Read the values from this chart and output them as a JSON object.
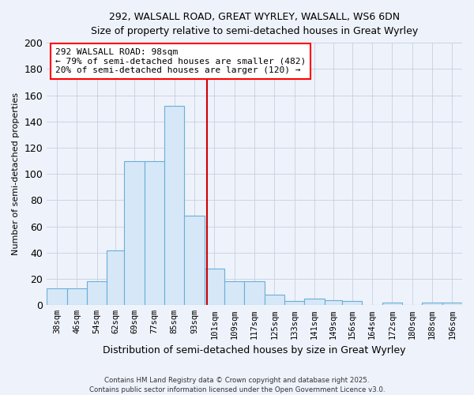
{
  "title": "292, WALSALL ROAD, GREAT WYRLEY, WALSALL, WS6 6DN",
  "subtitle": "Size of property relative to semi-detached houses in Great Wyrley",
  "xlabel": "Distribution of semi-detached houses by size in Great Wyrley",
  "ylabel": "Number of semi-detached properties",
  "annotation_title": "292 WALSALL ROAD: 98sqm",
  "annotation_line1": "← 79% of semi-detached houses are smaller (482)",
  "annotation_line2": "20% of semi-detached houses are larger (120) →",
  "property_value": 98,
  "bar_color": "#d6e8f7",
  "bar_edge_color": "#6aaed6",
  "vline_color": "#cc0000",
  "background_color": "#eef2fa",
  "grid_color": "#c8cfe0",
  "categories": [
    "38sqm",
    "46sqm",
    "54sqm",
    "62sqm",
    "69sqm",
    "77sqm",
    "85sqm",
    "93sqm",
    "101sqm",
    "109sqm",
    "117sqm",
    "125sqm",
    "133sqm",
    "141sqm",
    "149sqm",
    "156sqm",
    "164sqm",
    "172sqm",
    "180sqm",
    "188sqm",
    "196sqm"
  ],
  "bin_edges": [
    34,
    42,
    50,
    58,
    65,
    73,
    81,
    89,
    97,
    105,
    113,
    121,
    129,
    137,
    145,
    152,
    160,
    168,
    176,
    184,
    192,
    200
  ],
  "counts": [
    13,
    13,
    18,
    42,
    110,
    110,
    152,
    68,
    28,
    18,
    18,
    8,
    3,
    5,
    4,
    3,
    0,
    2,
    0,
    2,
    2
  ],
  "footer": "Contains HM Land Registry data © Crown copyright and database right 2025.\nContains public sector information licensed under the Open Government Licence v3.0.",
  "ylim": [
    0,
    200
  ],
  "yticks": [
    0,
    20,
    40,
    60,
    80,
    100,
    120,
    140,
    160,
    180,
    200
  ]
}
